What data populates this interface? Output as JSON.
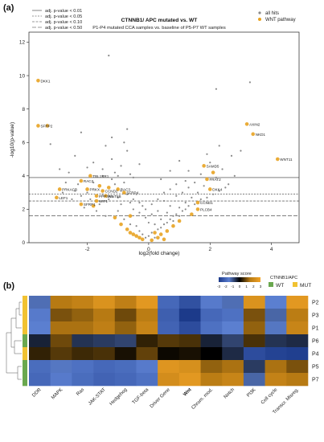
{
  "figure": {
    "panel_a_label": "(a)",
    "panel_b_label": "(b)"
  },
  "chart_data": [
    {
      "type": "scatter",
      "title": "CTNNB1/ APC mutated vs. WT",
      "subtitle": "P1-P4 mutated CCA samples vs. baseline of P5-P7 WT samples",
      "xlabel": "log2(fold change)",
      "ylabel": "-log10(p-value)",
      "xlim": [
        -3.9,
        4.9
      ],
      "ylim": [
        0,
        12.6
      ],
      "xticks": [
        -2,
        0,
        2,
        4
      ],
      "yticks": [
        0,
        2,
        4,
        6,
        8,
        10,
        12
      ],
      "grid": false,
      "legend_position": "top-right",
      "legend": {
        "all_hits": "all hits",
        "wnt_pathway": "WNT pathway",
        "colors": {
          "all_hits": "#8a8a8a",
          "wnt_pathway": "#e8a322"
        }
      },
      "threshold_legend": [
        "adj. p-value < 0.01",
        "adj. p-value < 0.05",
        "adj. p-value < 0.10",
        "adj. p-value < 0.50"
      ],
      "thresholds": [
        {
          "label": "adj. p-value < 0.01",
          "y": 3.9
        },
        {
          "label": "adj. p-value < 0.05",
          "y": 2.9
        },
        {
          "label": "adj. p-value < 0.10",
          "y": 2.5
        },
        {
          "label": "adj. p-value < 0.50",
          "y": 1.6
        }
      ],
      "wnt_points": [
        {
          "x": -3.6,
          "y": 9.7,
          "label": "DKK1"
        },
        {
          "x": -3.6,
          "y": 7.0,
          "label": "SFRP2"
        },
        {
          "x": -1.9,
          "y": 4.0,
          "label": "TBL1XR1"
        },
        {
          "x": 3.2,
          "y": 7.1,
          "label": "AXIN2"
        },
        {
          "x": 3.4,
          "y": 6.5,
          "label": "NKD1"
        },
        {
          "x": 4.2,
          "y": 5.0,
          "label": "WNT11"
        },
        {
          "x": 1.8,
          "y": 4.6,
          "label": "SAMD5"
        },
        {
          "x": 2.0,
          "y": 3.2,
          "label": "DKK4"
        },
        {
          "x": -2.2,
          "y": 3.7,
          "label": "RAC2"
        },
        {
          "x": -2.9,
          "y": 3.2,
          "label": "PRKACB"
        },
        {
          "x": -3.0,
          "y": 2.7,
          "label": "LEF1"
        },
        {
          "x": -2.0,
          "y": 3.2,
          "label": "PRKX"
        },
        {
          "x": -1.5,
          "y": 3.1,
          "label": "CCND2"
        },
        {
          "x": -1.7,
          "y": 2.8,
          "label": "PPP3R1"
        },
        {
          "x": -1.4,
          "y": 2.8,
          "label": "WNT5B"
        },
        {
          "x": -1.0,
          "y": 3.2,
          "label": "RAC3"
        },
        {
          "x": -0.8,
          "y": 3.0,
          "label": "SFRP4"
        },
        {
          "x": -2.2,
          "y": 2.3,
          "label": "SFRP1"
        },
        {
          "x": -1.7,
          "y": 2.5,
          "label": "WIF1"
        },
        {
          "x": 1.6,
          "y": 2.4,
          "label": "CCND1"
        },
        {
          "x": 1.6,
          "y": 2.0,
          "label": "PLCB4"
        },
        {
          "x": 1.9,
          "y": 3.8,
          "label": "FRAT2"
        },
        {
          "x": -3.3,
          "y": 7.0,
          "label": ""
        },
        {
          "x": -1.8,
          "y": 2.2,
          "label": ""
        },
        {
          "x": -1.1,
          "y": 1.5,
          "label": ""
        },
        {
          "x": -0.9,
          "y": 1.1,
          "label": ""
        },
        {
          "x": -0.7,
          "y": 0.8,
          "label": ""
        },
        {
          "x": -0.6,
          "y": 0.6,
          "label": ""
        },
        {
          "x": -0.5,
          "y": 0.5,
          "label": ""
        },
        {
          "x": -0.4,
          "y": 0.4,
          "label": ""
        },
        {
          "x": -0.3,
          "y": 0.3,
          "label": ""
        },
        {
          "x": -0.2,
          "y": 0.2,
          "label": ""
        },
        {
          "x": 0.1,
          "y": 0.15,
          "label": ""
        },
        {
          "x": 0.3,
          "y": 0.3,
          "label": ""
        },
        {
          "x": 0.4,
          "y": 0.5,
          "label": ""
        },
        {
          "x": 0.6,
          "y": 0.7,
          "label": ""
        },
        {
          "x": 0.8,
          "y": 1.0,
          "label": ""
        },
        {
          "x": 1.0,
          "y": 1.3,
          "label": ""
        },
        {
          "x": -1.6,
          "y": 3.4,
          "label": ""
        },
        {
          "x": -1.3,
          "y": 3.3,
          "label": ""
        },
        {
          "x": -0.6,
          "y": 1.6,
          "label": ""
        },
        {
          "x": 0.2,
          "y": 0.6,
          "label": ""
        },
        {
          "x": 1.4,
          "y": 1.7,
          "label": ""
        },
        {
          "x": 2.1,
          "y": 4.2,
          "label": ""
        },
        {
          "x": 0.5,
          "y": 0.2,
          "label": ""
        }
      ],
      "background_points": [
        [
          -2.9,
          4.4
        ],
        [
          -2.6,
          4.2
        ],
        [
          -2.4,
          5.2
        ],
        [
          -2.0,
          4.5
        ],
        [
          -1.8,
          4.8
        ],
        [
          -1.5,
          4.4
        ],
        [
          -1.4,
          5.8
        ],
        [
          -1.2,
          5.0
        ],
        [
          -1.1,
          4.2
        ],
        [
          -0.9,
          4.6
        ],
        [
          -0.7,
          5.5
        ],
        [
          -0.5,
          3.9
        ],
        [
          -0.3,
          4.7
        ],
        [
          -1.2,
          6.3
        ],
        [
          -2.2,
          6.6
        ],
        [
          -0.8,
          6.0
        ],
        [
          -2.3,
          3.5
        ],
        [
          -2.0,
          3.0
        ],
        [
          -1.8,
          3.6
        ],
        [
          -1.5,
          2.9
        ],
        [
          -1.3,
          2.6
        ],
        [
          -1.2,
          3.8
        ],
        [
          -1.0,
          2.7
        ],
        [
          -0.9,
          2.3
        ],
        [
          -0.8,
          3.6
        ],
        [
          -0.6,
          2.4
        ],
        [
          -0.5,
          2.0
        ],
        [
          -0.4,
          2.9
        ],
        [
          -0.3,
          1.8
        ],
        [
          -0.2,
          2.2
        ],
        [
          -0.1,
          1.5
        ],
        [
          0.0,
          1.2
        ],
        [
          0.1,
          1.7
        ],
        [
          0.2,
          1.1
        ],
        [
          0.3,
          1.9
        ],
        [
          0.4,
          1.4
        ],
        [
          0.5,
          2.5
        ],
        [
          0.6,
          1.8
        ],
        [
          0.7,
          2.2
        ],
        [
          0.8,
          1.6
        ],
        [
          0.9,
          2.8
        ],
        [
          1.0,
          2.1
        ],
        [
          1.1,
          3.0
        ],
        [
          1.2,
          2.4
        ],
        [
          1.3,
          3.3
        ],
        [
          1.4,
          2.7
        ],
        [
          1.5,
          3.6
        ],
        [
          1.6,
          3.0
        ],
        [
          1.7,
          4.1
        ],
        [
          1.8,
          3.4
        ],
        [
          2.0,
          4.8
        ],
        [
          2.2,
          3.9
        ],
        [
          2.4,
          4.4
        ],
        [
          2.6,
          3.5
        ],
        [
          2.8,
          4.0
        ],
        [
          3.0,
          5.5
        ],
        [
          2.7,
          5.2
        ],
        [
          2.3,
          5.8
        ],
        [
          1.0,
          4.9
        ],
        [
          0.7,
          4.3
        ],
        [
          0.4,
          3.8
        ],
        [
          1.9,
          5.3
        ],
        [
          2.2,
          9.2
        ],
        [
          3.3,
          9.6
        ],
        [
          -1.3,
          11.2
        ],
        [
          -0.7,
          6.8
        ],
        [
          -3.2,
          5.9
        ],
        [
          -2.8,
          3.0
        ],
        [
          -2.5,
          2.6
        ],
        [
          -2.1,
          2.1
        ],
        [
          -1.7,
          1.9
        ],
        [
          -1.4,
          1.6
        ],
        [
          -1.0,
          1.9
        ],
        [
          -0.8,
          1.4
        ],
        [
          -0.6,
          1.1
        ],
        [
          -0.4,
          1.0
        ],
        [
          -0.3,
          0.7
        ],
        [
          -0.2,
          0.5
        ],
        [
          -0.1,
          0.3
        ],
        [
          0.0,
          0.4
        ],
        [
          0.1,
          0.6
        ],
        [
          0.2,
          0.3
        ],
        [
          0.3,
          0.8
        ],
        [
          0.4,
          0.9
        ],
        [
          0.5,
          1.1
        ],
        [
          0.6,
          1.2
        ],
        [
          0.7,
          1.4
        ],
        [
          0.8,
          1.3
        ],
        [
          0.9,
          1.7
        ],
        [
          1.0,
          1.6
        ],
        [
          1.1,
          1.9
        ],
        [
          1.2,
          2.0
        ],
        [
          1.3,
          2.2
        ],
        [
          1.5,
          2.3
        ],
        [
          1.7,
          2.6
        ],
        [
          1.9,
          2.7
        ],
        [
          2.1,
          2.9
        ],
        [
          2.3,
          3.1
        ],
        [
          2.5,
          3.3
        ],
        [
          -1.6,
          2.3
        ],
        [
          -1.9,
          2.6
        ],
        [
          -2.2,
          2.8
        ],
        [
          -2.4,
          3.1
        ],
        [
          -2.7,
          3.6
        ],
        [
          -1.1,
          3.5
        ],
        [
          -0.9,
          3.1
        ],
        [
          -0.7,
          2.9
        ],
        [
          -0.5,
          2.6
        ],
        [
          -0.3,
          2.4
        ],
        [
          -0.1,
          2.0
        ],
        [
          0.1,
          2.3
        ],
        [
          0.3,
          2.6
        ],
        [
          0.5,
          3.0
        ],
        [
          0.7,
          3.2
        ],
        [
          0.9,
          3.5
        ],
        [
          1.2,
          3.7
        ],
        [
          -1.5,
          4.0
        ],
        [
          -1.0,
          4.0
        ],
        [
          -0.6,
          4.1
        ],
        [
          1.3,
          4.3
        ]
      ]
    },
    {
      "type": "heatmap",
      "columns": [
        "DDR",
        "MAPK",
        "Ras",
        "JAK-STAT",
        "Hedgehog",
        "TGF-beta",
        "Driver Gene",
        "Wnt",
        "Chrom. mod.",
        "Notch",
        "PI3K",
        "Cell cycle",
        "Transcr. Misreg."
      ],
      "rows": [
        {
          "label": "P2",
          "status": "MUT",
          "values": [
            -1.3,
            1.5,
            1.8,
            2.4,
            1.7,
            2.6,
            -2.0,
            -2.5,
            -1.6,
            -1.3,
            2.4,
            -1.5,
            2.6
          ]
        },
        {
          "label": "P3",
          "status": "MUT",
          "values": [
            -1.6,
            1.0,
            1.2,
            1.5,
            0.9,
            1.6,
            -2.2,
            -3.0,
            -2.0,
            -1.8,
            1.0,
            -1.2,
            1.6
          ]
        },
        {
          "label": "P1",
          "status": "MUT",
          "values": [
            -1.5,
            1.4,
            1.4,
            1.7,
            1.2,
            1.9,
            -2.1,
            -2.6,
            -1.8,
            -1.5,
            1.2,
            -1.4,
            1.9
          ]
        },
        {
          "label": "P6",
          "status": "WT",
          "values": [
            -0.4,
            0.9,
            -0.6,
            -0.7,
            -0.8,
            0.4,
            0.7,
            0.6,
            -0.4,
            -0.8,
            0.6,
            -0.6,
            -0.5
          ]
        },
        {
          "label": "P4",
          "status": "MUT",
          "values": [
            0.4,
            0.7,
            0.5,
            0.6,
            0.2,
            0.8,
            0.1,
            0.2,
            0.0,
            -0.5,
            -2.6,
            -2.8,
            -2.9
          ]
        },
        {
          "label": "P5",
          "status": "WT",
          "values": [
            -1.9,
            -1.4,
            -1.8,
            -2.0,
            -1.9,
            -1.6,
            2.5,
            2.3,
            1.2,
            1.4,
            -0.7,
            1.4,
            1.0
          ]
        },
        {
          "label": "P7",
          "status": "WT",
          "values": [
            -2.0,
            -1.6,
            -1.9,
            -2.1,
            -2.0,
            -1.8,
            2.2,
            2.6,
            1.6,
            1.9,
            -1.2,
            1.8,
            1.5
          ]
        }
      ],
      "legend": {
        "title": "Pathway score",
        "ticks": [
          -3,
          -2,
          -1,
          0,
          1,
          2,
          3
        ],
        "group_title": "CTNNB1/APC",
        "groups": [
          {
            "label": "WT",
            "color": "#6aa84f"
          },
          {
            "label": "MUT",
            "color": "#f1c232"
          }
        ]
      },
      "colors": {
        "low": "#1c3a8a",
        "mid_low": "#5b7fd0",
        "mid": "#000000",
        "mid_high": "#b77a13",
        "high": "#f2a326"
      }
    }
  ]
}
